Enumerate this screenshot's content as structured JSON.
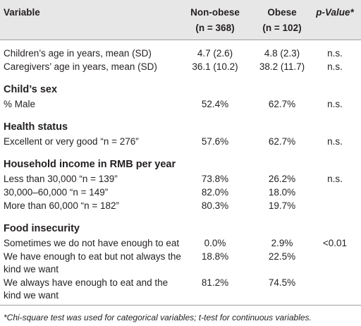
{
  "header": {
    "variable": "Variable",
    "non_obese": [
      "Non-obese",
      "(n = 368)"
    ],
    "obese": [
      "Obese",
      "(n = 102)"
    ],
    "p_value": "p-Value*"
  },
  "sections": [
    {
      "rows": [
        {
          "label": [
            "Children’s age in years, mean (SD)"
          ],
          "non_obese": "4.7 (2.6)",
          "obese": "4.8 (2.3)",
          "p": "n.s."
        },
        {
          "label": [
            "Caregivers’ age in years, mean (SD)"
          ],
          "non_obese": "36.1 (10.2)",
          "obese": "38.2 (11.7)",
          "p": "n.s."
        }
      ]
    },
    {
      "title": "Child’s sex",
      "rows": [
        {
          "label": [
            "% Male"
          ],
          "non_obese": "52.4%",
          "obese": "62.7%",
          "p": "n.s."
        }
      ]
    },
    {
      "title": "Health status",
      "rows": [
        {
          "label": [
            "Excellent or very good “n = 276”"
          ],
          "non_obese": "57.6%",
          "obese": "62.7%",
          "p": "n.s."
        }
      ]
    },
    {
      "title": "Household income in RMB per year",
      "rows": [
        {
          "label": [
            "Less than 30,000 “n = 139”"
          ],
          "non_obese": "73.8%",
          "obese": "26.2%",
          "p": "n.s."
        },
        {
          "label": [
            "30,000–60,000 “n = 149”"
          ],
          "non_obese": "82.0%",
          "obese": "18.0%"
        },
        {
          "label": [
            "More than 60,000 “n = 182”"
          ],
          "non_obese": "80.3%",
          "obese": "19.7%"
        }
      ]
    },
    {
      "title": "Food insecurity",
      "rows": [
        {
          "label": [
            "Sometimes we do not have enough to eat"
          ],
          "non_obese": "0.0%",
          "obese": "2.9%",
          "p": "<0.01"
        },
        {
          "label": [
            "We have enough to eat but not always the",
            "kind we want"
          ],
          "non_obese": "18.8%",
          "obese": "22.5%"
        },
        {
          "label": [
            "We always have enough to eat and the",
            "kind we want"
          ],
          "non_obese": "81.2%",
          "obese": "74.5%"
        }
      ]
    }
  ],
  "footnote": "*Chi-square test was used for categorical variables; t-test for continuous variables."
}
